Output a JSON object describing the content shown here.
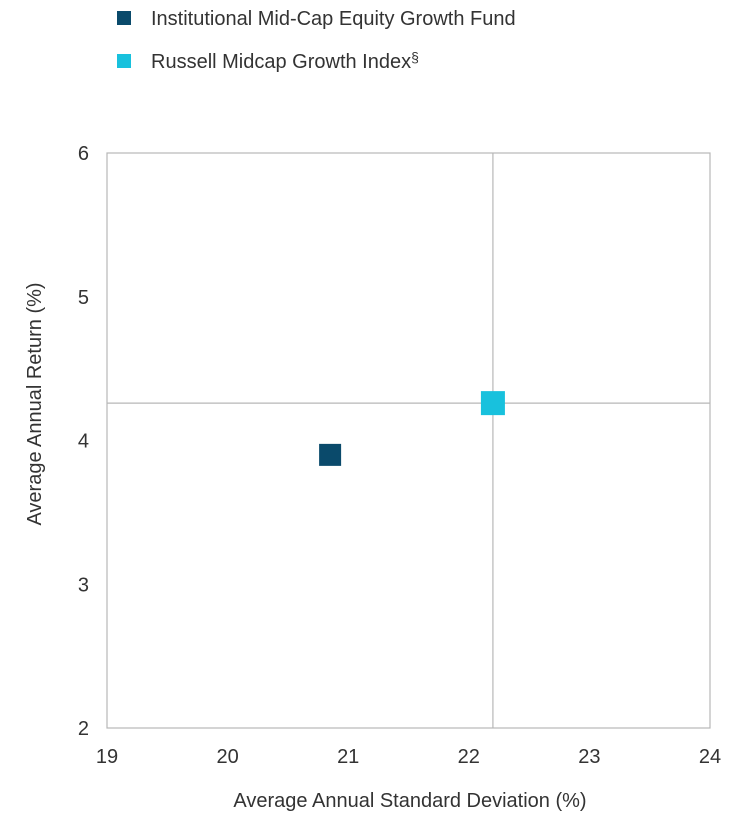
{
  "chart_data": {
    "type": "scatter",
    "xlabel": "Average Annual Standard Deviation (%)",
    "ylabel": "Average Annual Return (%)",
    "xlim": [
      19,
      24
    ],
    "ylim": [
      2,
      6
    ],
    "x_ticks": [
      "19",
      "20",
      "21",
      "22",
      "23",
      "24"
    ],
    "y_ticks": [
      "2",
      "3",
      "4",
      "5",
      "6"
    ],
    "grid": false,
    "legend_position": "top-left",
    "reference_lines": {
      "x": 22.2,
      "y": 4.26
    },
    "series": [
      {
        "name": "Institutional Mid-Cap Equity Growth Fund",
        "color": "#0a4a6b",
        "x": [
          20.85
        ],
        "y": [
          3.9
        ]
      },
      {
        "name": "Russell Midcap Growth Index",
        "legend_suffix": "§",
        "color": "#18c1dd",
        "x": [
          22.2
        ],
        "y": [
          4.26
        ]
      }
    ]
  }
}
